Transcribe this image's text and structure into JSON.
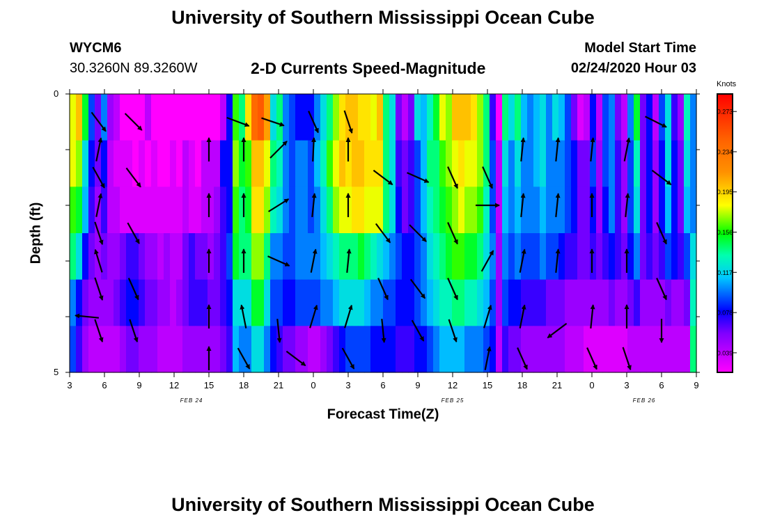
{
  "header": {
    "title_top": "University of Southern Mississippi Ocean Cube",
    "title_bottom": "University of Southern Mississippi Ocean Cube",
    "station": "WYCM6",
    "coords": "30.3260N 89.3260W",
    "subtitle": "2-D Currents Speed-Magnitude",
    "model_label": "Model Start Time",
    "model_time": "02/24/2020 Hour 03"
  },
  "chart_data": {
    "type": "heatmap",
    "title": "2-D Currents Speed-Magnitude",
    "xlabel": "Forecast Time(Z)",
    "ylabel": "Depth (ft)",
    "x_tick_labels": [
      "3",
      "6",
      "9",
      "12",
      "15",
      "18",
      "21",
      "0",
      "3",
      "6",
      "9",
      "12",
      "15",
      "18",
      "21",
      "0",
      "3",
      "6",
      "9"
    ],
    "date_labels": [
      {
        "text": "FEB 24",
        "at_tick": 3.5
      },
      {
        "text": "FEB 25",
        "at_tick": 11
      },
      {
        "text": "FEB 26",
        "at_tick": 16.5
      }
    ],
    "y_tick_labels": {
      "top": "0",
      "bottom": "5"
    },
    "ylim": [
      0,
      5
    ],
    "x_hours": [
      3,
      57
    ],
    "colorbar": {
      "unit": "Knots",
      "min": 0.02,
      "max": 0.29,
      "tick_values": [
        "0.273",
        "0.234",
        "0.195",
        "0.156",
        "0.117",
        "0.078",
        "0.039"
      ]
    },
    "speed_rows": [
      [
        0.18,
        0.2,
        0.15,
        0.09,
        0.06,
        0.1,
        0.05,
        0.04,
        0.02,
        0.02,
        0.02,
        0.02,
        0.04,
        0.02,
        0.02,
        0.02,
        0.02,
        0.02,
        0.02,
        0.02,
        0.02,
        0.02,
        0.02,
        0.02,
        0.04,
        0.08,
        0.16,
        0.14,
        0.19,
        0.24,
        0.25,
        0.21,
        0.12,
        0.14,
        0.1,
        0.09,
        0.08,
        0.08,
        0.08,
        0.1,
        0.12,
        0.14,
        0.17,
        0.19,
        0.2,
        0.2,
        0.19,
        0.19,
        0.18,
        0.2,
        0.14,
        0.12,
        0.06,
        0.04,
        0.06,
        0.12,
        0.11,
        0.13,
        0.15,
        0.18,
        0.17,
        0.2,
        0.2,
        0.2,
        0.19,
        0.17,
        0.14,
        0.07,
        0.02,
        0.14,
        0.12,
        0.14,
        0.11,
        0.1,
        0.11,
        0.12,
        0.1,
        0.12,
        0.11,
        0.09,
        0.06,
        0.03,
        0.04,
        0.08,
        0.04,
        0.09,
        0.1,
        0.06,
        0.04,
        0.1,
        0.15,
        0.06,
        0.08,
        0.04,
        0.09,
        0.12,
        0.07,
        0.05,
        0.13,
        0.1
      ],
      [
        0.18,
        0.17,
        0.12,
        0.08,
        0.06,
        0.08,
        0.04,
        0.03,
        0.03,
        0.03,
        0.02,
        0.03,
        0.02,
        0.03,
        0.02,
        0.02,
        0.03,
        0.02,
        0.04,
        0.03,
        0.02,
        0.04,
        0.04,
        0.04,
        0.08,
        0.08,
        0.17,
        0.15,
        0.16,
        0.2,
        0.2,
        0.18,
        0.14,
        0.13,
        0.1,
        0.09,
        0.1,
        0.1,
        0.09,
        0.11,
        0.13,
        0.16,
        0.18,
        0.2,
        0.19,
        0.2,
        0.2,
        0.19,
        0.19,
        0.19,
        0.14,
        0.12,
        0.07,
        0.06,
        0.07,
        0.09,
        0.11,
        0.14,
        0.14,
        0.16,
        0.17,
        0.18,
        0.19,
        0.18,
        0.18,
        0.17,
        0.14,
        0.09,
        0.04,
        0.12,
        0.1,
        0.12,
        0.1,
        0.1,
        0.11,
        0.12,
        0.1,
        0.1,
        0.1,
        0.09,
        0.08,
        0.06,
        0.06,
        0.09,
        0.05,
        0.09,
        0.1,
        0.07,
        0.05,
        0.09,
        0.13,
        0.06,
        0.08,
        0.05,
        0.08,
        0.12,
        0.08,
        0.06,
        0.12,
        0.1
      ],
      [
        0.16,
        0.15,
        0.11,
        0.07,
        0.05,
        0.07,
        0.04,
        0.04,
        0.03,
        0.03,
        0.03,
        0.03,
        0.03,
        0.03,
        0.03,
        0.03,
        0.03,
        0.03,
        0.04,
        0.03,
        0.03,
        0.04,
        0.04,
        0.05,
        0.07,
        0.08,
        0.16,
        0.14,
        0.15,
        0.19,
        0.19,
        0.17,
        0.13,
        0.12,
        0.1,
        0.09,
        0.1,
        0.1,
        0.09,
        0.1,
        0.12,
        0.14,
        0.17,
        0.18,
        0.18,
        0.19,
        0.19,
        0.18,
        0.18,
        0.18,
        0.14,
        0.12,
        0.08,
        0.06,
        0.07,
        0.09,
        0.11,
        0.13,
        0.14,
        0.15,
        0.16,
        0.17,
        0.18,
        0.17,
        0.17,
        0.16,
        0.13,
        0.09,
        0.04,
        0.11,
        0.1,
        0.11,
        0.1,
        0.1,
        0.1,
        0.11,
        0.1,
        0.1,
        0.1,
        0.09,
        0.08,
        0.06,
        0.06,
        0.08,
        0.05,
        0.08,
        0.1,
        0.07,
        0.05,
        0.09,
        0.12,
        0.06,
        0.08,
        0.05,
        0.08,
        0.11,
        0.08,
        0.06,
        0.11,
        0.1
      ],
      [
        0.14,
        0.12,
        0.08,
        0.06,
        0.05,
        0.06,
        0.05,
        0.05,
        0.06,
        0.07,
        0.07,
        0.06,
        0.05,
        0.05,
        0.04,
        0.05,
        0.04,
        0.04,
        0.06,
        0.07,
        0.06,
        0.06,
        0.05,
        0.06,
        0.07,
        0.09,
        0.15,
        0.14,
        0.14,
        0.17,
        0.17,
        0.14,
        0.1,
        0.1,
        0.09,
        0.09,
        0.1,
        0.1,
        0.1,
        0.1,
        0.11,
        0.12,
        0.13,
        0.14,
        0.14,
        0.14,
        0.15,
        0.14,
        0.13,
        0.12,
        0.11,
        0.1,
        0.09,
        0.08,
        0.08,
        0.09,
        0.1,
        0.12,
        0.13,
        0.14,
        0.15,
        0.16,
        0.16,
        0.15,
        0.15,
        0.14,
        0.12,
        0.1,
        0.05,
        0.1,
        0.09,
        0.1,
        0.09,
        0.09,
        0.09,
        0.1,
        0.09,
        0.09,
        0.08,
        0.07,
        0.07,
        0.06,
        0.06,
        0.07,
        0.06,
        0.07,
        0.08,
        0.07,
        0.06,
        0.08,
        0.1,
        0.06,
        0.07,
        0.06,
        0.07,
        0.09,
        0.08,
        0.07,
        0.09,
        0.12
      ],
      [
        0.1,
        0.08,
        0.06,
        0.05,
        0.05,
        0.05,
        0.05,
        0.06,
        0.07,
        0.08,
        0.08,
        0.07,
        0.06,
        0.06,
        0.05,
        0.05,
        0.04,
        0.05,
        0.06,
        0.07,
        0.07,
        0.07,
        0.06,
        0.06,
        0.07,
        0.08,
        0.12,
        0.12,
        0.12,
        0.15,
        0.15,
        0.12,
        0.09,
        0.09,
        0.08,
        0.08,
        0.09,
        0.09,
        0.09,
        0.09,
        0.1,
        0.1,
        0.11,
        0.12,
        0.12,
        0.12,
        0.12,
        0.11,
        0.1,
        0.1,
        0.09,
        0.09,
        0.08,
        0.08,
        0.08,
        0.09,
        0.1,
        0.11,
        0.12,
        0.13,
        0.13,
        0.14,
        0.14,
        0.13,
        0.13,
        0.12,
        0.11,
        0.09,
        0.05,
        0.09,
        0.08,
        0.08,
        0.07,
        0.07,
        0.07,
        0.07,
        0.06,
        0.06,
        0.06,
        0.05,
        0.05,
        0.05,
        0.05,
        0.05,
        0.05,
        0.05,
        0.06,
        0.05,
        0.05,
        0.06,
        0.07,
        0.05,
        0.05,
        0.05,
        0.05,
        0.06,
        0.05,
        0.05,
        0.06,
        0.13
      ],
      [
        0.09,
        0.07,
        0.05,
        0.04,
        0.04,
        0.04,
        0.04,
        0.04,
        0.05,
        0.06,
        0.06,
        0.05,
        0.05,
        0.05,
        0.04,
        0.04,
        0.04,
        0.04,
        0.05,
        0.05,
        0.05,
        0.05,
        0.05,
        0.05,
        0.06,
        0.07,
        0.11,
        0.1,
        0.1,
        0.12,
        0.12,
        0.1,
        0.08,
        0.07,
        0.06,
        0.06,
        0.05,
        0.05,
        0.04,
        0.04,
        0.05,
        0.06,
        0.07,
        0.08,
        0.09,
        0.09,
        0.09,
        0.09,
        0.08,
        0.08,
        0.08,
        0.08,
        0.07,
        0.07,
        0.07,
        0.08,
        0.08,
        0.09,
        0.1,
        0.11,
        0.11,
        0.11,
        0.11,
        0.1,
        0.1,
        0.1,
        0.09,
        0.08,
        0.04,
        0.07,
        0.06,
        0.06,
        0.05,
        0.05,
        0.05,
        0.05,
        0.05,
        0.05,
        0.05,
        0.04,
        0.04,
        0.04,
        0.03,
        0.03,
        0.03,
        0.03,
        0.03,
        0.03,
        0.03,
        0.04,
        0.04,
        0.04,
        0.04,
        0.04,
        0.04,
        0.04,
        0.04,
        0.04,
        0.04,
        0.14
      ]
    ],
    "vectors": [
      {
        "h": 5.5,
        "d": 0.5,
        "u": 0.6,
        "v": -0.8
      },
      {
        "h": 8.5,
        "d": 0.5,
        "u": 0.7,
        "v": -0.7
      },
      {
        "h": 17.5,
        "d": 0.5,
        "u": 0.8,
        "v": -0.3
      },
      {
        "h": 20.5,
        "d": 0.5,
        "u": 0.9,
        "v": -0.3
      },
      {
        "h": 24,
        "d": 0.5,
        "u": 0.4,
        "v": -0.9
      },
      {
        "h": 27,
        "d": 0.5,
        "u": 0.3,
        "v": -0.9
      },
      {
        "h": 53.5,
        "d": 0.5,
        "u": 0.8,
        "v": -0.4
      },
      {
        "h": 5.5,
        "d": 1.0,
        "u": 0.2,
        "v": 1
      },
      {
        "h": 15,
        "d": 1.0,
        "u": 0,
        "v": 1
      },
      {
        "h": 18,
        "d": 1.0,
        "u": 0,
        "v": 1
      },
      {
        "h": 21,
        "d": 1.0,
        "u": 0.7,
        "v": 0.7
      },
      {
        "h": 24,
        "d": 1.0,
        "u": 0.05,
        "v": 1
      },
      {
        "h": 27,
        "d": 1.0,
        "u": 0,
        "v": 1
      },
      {
        "h": 42,
        "d": 1.0,
        "u": 0.1,
        "v": 1
      },
      {
        "h": 45,
        "d": 1.0,
        "u": 0.1,
        "v": 1
      },
      {
        "h": 48,
        "d": 1.0,
        "u": 0.1,
        "v": 1
      },
      {
        "h": 51,
        "d": 1.0,
        "u": 0.2,
        "v": 1
      },
      {
        "h": 5.5,
        "d": 1.5,
        "u": 0.5,
        "v": -0.9
      },
      {
        "h": 8.5,
        "d": 1.5,
        "u": 0.6,
        "v": -0.8
      },
      {
        "h": 30,
        "d": 1.5,
        "u": 0.8,
        "v": -0.6
      },
      {
        "h": 33,
        "d": 1.5,
        "u": 0.9,
        "v": -0.4
      },
      {
        "h": 36,
        "d": 1.5,
        "u": 0.4,
        "v": -0.9
      },
      {
        "h": 39,
        "d": 1.5,
        "u": 0.4,
        "v": -0.9
      },
      {
        "h": 54,
        "d": 1.5,
        "u": 0.8,
        "v": -0.6
      },
      {
        "h": 5.5,
        "d": 2.0,
        "u": 0.2,
        "v": 1
      },
      {
        "h": 15,
        "d": 2.0,
        "u": 0,
        "v": 1
      },
      {
        "h": 18,
        "d": 2.0,
        "u": 0,
        "v": 1
      },
      {
        "h": 21,
        "d": 2.0,
        "u": 0.8,
        "v": 0.5
      },
      {
        "h": 24,
        "d": 2.0,
        "u": 0.1,
        "v": 1
      },
      {
        "h": 27,
        "d": 2.0,
        "u": 0,
        "v": 1
      },
      {
        "h": 39,
        "d": 2.0,
        "u": 1,
        "v": 0
      },
      {
        "h": 42,
        "d": 2.0,
        "u": 0.1,
        "v": 1
      },
      {
        "h": 45,
        "d": 2.0,
        "u": 0.1,
        "v": 1
      },
      {
        "h": 48,
        "d": 2.0,
        "u": 0,
        "v": 1
      },
      {
        "h": 51,
        "d": 2.0,
        "u": 0.1,
        "v": 1
      },
      {
        "h": 5.5,
        "d": 2.5,
        "u": 0.3,
        "v": -0.9
      },
      {
        "h": 8.5,
        "d": 2.5,
        "u": 0.5,
        "v": -0.9
      },
      {
        "h": 30,
        "d": 2.5,
        "u": 0.6,
        "v": -0.8
      },
      {
        "h": 33,
        "d": 2.5,
        "u": 0.7,
        "v": -0.7
      },
      {
        "h": 36,
        "d": 2.5,
        "u": 0.4,
        "v": -0.9
      },
      {
        "h": 54,
        "d": 2.5,
        "u": 0.4,
        "v": -0.9
      },
      {
        "h": 5.5,
        "d": 3.0,
        "u": -0.3,
        "v": 1
      },
      {
        "h": 15,
        "d": 3.0,
        "u": 0,
        "v": 1
      },
      {
        "h": 18,
        "d": 3.0,
        "u": 0,
        "v": 1
      },
      {
        "h": 21,
        "d": 3.0,
        "u": 0.9,
        "v": -0.4
      },
      {
        "h": 24,
        "d": 3.0,
        "u": 0.2,
        "v": 1
      },
      {
        "h": 27,
        "d": 3.0,
        "u": 0.1,
        "v": 1
      },
      {
        "h": 39,
        "d": 3.0,
        "u": 0.5,
        "v": 0.9
      },
      {
        "h": 42,
        "d": 3.0,
        "u": 0.2,
        "v": 1
      },
      {
        "h": 45,
        "d": 3.0,
        "u": 0.1,
        "v": 1
      },
      {
        "h": 48,
        "d": 3.0,
        "u": 0,
        "v": 1
      },
      {
        "h": 51,
        "d": 3.0,
        "u": 0,
        "v": 1
      },
      {
        "h": 5.5,
        "d": 3.5,
        "u": 0.3,
        "v": -0.9
      },
      {
        "h": 8.5,
        "d": 3.5,
        "u": 0.4,
        "v": -0.9
      },
      {
        "h": 30,
        "d": 3.5,
        "u": 0.4,
        "v": -0.9
      },
      {
        "h": 33,
        "d": 3.5,
        "u": 0.6,
        "v": -0.8
      },
      {
        "h": 36,
        "d": 3.5,
        "u": 0.4,
        "v": -0.9
      },
      {
        "h": 54,
        "d": 3.5,
        "u": 0.4,
        "v": -0.9
      },
      {
        "h": 4.5,
        "d": 4.0,
        "u": -1,
        "v": 0.1
      },
      {
        "h": 15,
        "d": 4.0,
        "u": 0,
        "v": 1
      },
      {
        "h": 18,
        "d": 4.0,
        "u": -0.2,
        "v": 1
      },
      {
        "h": 24,
        "d": 4.0,
        "u": 0.3,
        "v": 1
      },
      {
        "h": 27,
        "d": 4.0,
        "u": 0.3,
        "v": 1
      },
      {
        "h": 39,
        "d": 4.0,
        "u": 0.3,
        "v": 1
      },
      {
        "h": 42,
        "d": 4.0,
        "u": 0.2,
        "v": 1
      },
      {
        "h": 48,
        "d": 4.0,
        "u": 0.1,
        "v": 1
      },
      {
        "h": 51,
        "d": 4.0,
        "u": 0,
        "v": 1
      },
      {
        "h": 5.5,
        "d": 4.25,
        "u": 0.3,
        "v": -0.9
      },
      {
        "h": 8.5,
        "d": 4.25,
        "u": 0.3,
        "v": -0.9
      },
      {
        "h": 21,
        "d": 4.25,
        "u": 0.1,
        "v": -1
      },
      {
        "h": 30,
        "d": 4.25,
        "u": 0.1,
        "v": -1
      },
      {
        "h": 33,
        "d": 4.25,
        "u": 0.5,
        "v": -0.9
      },
      {
        "h": 36,
        "d": 4.25,
        "u": 0.3,
        "v": -0.9
      },
      {
        "h": 45,
        "d": 4.25,
        "u": -0.8,
        "v": -0.6
      },
      {
        "h": 54,
        "d": 4.25,
        "u": 0,
        "v": -1
      },
      {
        "h": 15,
        "d": 4.75,
        "u": 0,
        "v": 1
      },
      {
        "h": 18,
        "d": 4.75,
        "u": 0.5,
        "v": -0.9
      },
      {
        "h": 22.5,
        "d": 4.75,
        "u": 0.8,
        "v": -0.6
      },
      {
        "h": 27,
        "d": 4.75,
        "u": 0.5,
        "v": -0.9
      },
      {
        "h": 39,
        "d": 4.75,
        "u": 0.2,
        "v": 1
      },
      {
        "h": 42,
        "d": 4.75,
        "u": 0.4,
        "v": -0.9
      },
      {
        "h": 48,
        "d": 4.75,
        "u": 0.4,
        "v": -0.9
      },
      {
        "h": 51,
        "d": 4.75,
        "u": 0.3,
        "v": -0.9
      }
    ]
  }
}
